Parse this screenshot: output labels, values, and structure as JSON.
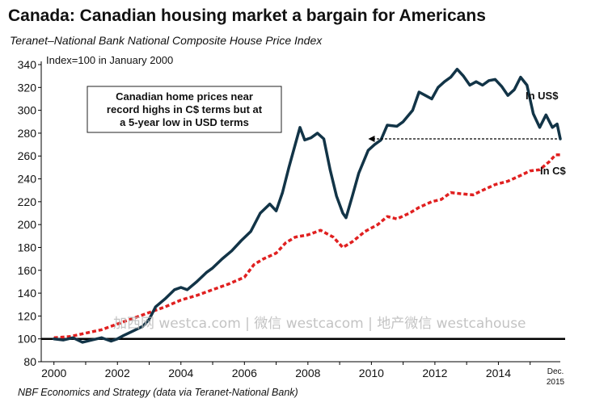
{
  "title": "Canada: Canadian housing market a bargain for Americans",
  "subtitle": "Teranet–National Bank National Composite House Price Index",
  "source": "NBF Economics and Strategy (data via Teranet-National Bank)",
  "watermark": "加西网 westca.com | 微信 westcacom | 地产微信 westcahouse",
  "colors": {
    "usd": "#123447",
    "cad": "#e02020",
    "baseline": "#000000"
  },
  "chart_data": {
    "type": "line",
    "ylabel": "Index=100 in January 2000",
    "ylim": [
      80,
      340
    ],
    "yticks": [
      80,
      100,
      120,
      140,
      160,
      180,
      200,
      220,
      240,
      260,
      280,
      300,
      320,
      340
    ],
    "xlim": [
      1999.6,
      2015.95
    ],
    "xticks": [
      2000,
      2002,
      2004,
      2006,
      2008,
      2010,
      2012,
      2014
    ],
    "xtick_labels": [
      "2000",
      "2002",
      "2004",
      "2006",
      "2008",
      "2010",
      "2012",
      "2014"
    ],
    "x_end_label": [
      "Dec.",
      "2015"
    ],
    "baseline": 100,
    "grid": false,
    "annotation": [
      "Canadian home prices near",
      "record highs in C$ terms but at",
      "a 5-year low in USD terms"
    ],
    "reference_arrow": {
      "from_x": 2015.95,
      "to_x": 2009.9,
      "y": 275
    },
    "series": [
      {
        "name": "In US$",
        "style": "solid",
        "points": [
          [
            2000.0,
            100
          ],
          [
            2000.3,
            99
          ],
          [
            2000.6,
            101
          ],
          [
            2000.9,
            97
          ],
          [
            2001.2,
            99
          ],
          [
            2001.5,
            101
          ],
          [
            2001.8,
            98
          ],
          [
            2002.0,
            100
          ],
          [
            2002.2,
            103
          ],
          [
            2002.5,
            107
          ],
          [
            2002.8,
            111
          ],
          [
            2003.0,
            117
          ],
          [
            2003.2,
            128
          ],
          [
            2003.5,
            135
          ],
          [
            2003.8,
            143
          ],
          [
            2004.0,
            145
          ],
          [
            2004.2,
            143
          ],
          [
            2004.5,
            150
          ],
          [
            2004.8,
            158
          ],
          [
            2005.0,
            162
          ],
          [
            2005.3,
            170
          ],
          [
            2005.6,
            177
          ],
          [
            2005.9,
            186
          ],
          [
            2006.2,
            194
          ],
          [
            2006.5,
            210
          ],
          [
            2006.8,
            218
          ],
          [
            2007.0,
            212
          ],
          [
            2007.2,
            228
          ],
          [
            2007.4,
            250
          ],
          [
            2007.6,
            270
          ],
          [
            2007.75,
            285
          ],
          [
            2007.9,
            274
          ],
          [
            2008.1,
            276
          ],
          [
            2008.3,
            280
          ],
          [
            2008.5,
            275
          ],
          [
            2008.7,
            248
          ],
          [
            2008.9,
            225
          ],
          [
            2009.1,
            210
          ],
          [
            2009.2,
            206
          ],
          [
            2009.4,
            225
          ],
          [
            2009.6,
            245
          ],
          [
            2009.9,
            265
          ],
          [
            2010.1,
            270
          ],
          [
            2010.3,
            274
          ],
          [
            2010.5,
            287
          ],
          [
            2010.8,
            286
          ],
          [
            2011.0,
            290
          ],
          [
            2011.3,
            300
          ],
          [
            2011.5,
            316
          ],
          [
            2011.7,
            313
          ],
          [
            2011.9,
            310
          ],
          [
            2012.1,
            320
          ],
          [
            2012.3,
            325
          ],
          [
            2012.5,
            329
          ],
          [
            2012.7,
            336
          ],
          [
            2012.9,
            330
          ],
          [
            2013.1,
            322
          ],
          [
            2013.3,
            325
          ],
          [
            2013.5,
            322
          ],
          [
            2013.7,
            326
          ],
          [
            2013.9,
            327
          ],
          [
            2014.1,
            321
          ],
          [
            2014.3,
            313
          ],
          [
            2014.5,
            318
          ],
          [
            2014.7,
            329
          ],
          [
            2014.9,
            322
          ],
          [
            2015.1,
            297
          ],
          [
            2015.3,
            285
          ],
          [
            2015.5,
            296
          ],
          [
            2015.7,
            285
          ],
          [
            2015.85,
            288
          ],
          [
            2015.95,
            275
          ]
        ]
      },
      {
        "name": "In C$",
        "style": "dashed",
        "points": [
          [
            2000.0,
            101
          ],
          [
            2000.5,
            102
          ],
          [
            2001.0,
            105
          ],
          [
            2001.5,
            108
          ],
          [
            2002.0,
            113
          ],
          [
            2002.5,
            118
          ],
          [
            2003.0,
            123
          ],
          [
            2003.5,
            128
          ],
          [
            2004.0,
            134
          ],
          [
            2004.5,
            138
          ],
          [
            2005.0,
            143
          ],
          [
            2005.5,
            148
          ],
          [
            2006.0,
            154
          ],
          [
            2006.3,
            165
          ],
          [
            2006.6,
            170
          ],
          [
            2007.0,
            175
          ],
          [
            2007.3,
            184
          ],
          [
            2007.6,
            189
          ],
          [
            2008.0,
            191
          ],
          [
            2008.4,
            195
          ],
          [
            2008.8,
            189
          ],
          [
            2009.1,
            180
          ],
          [
            2009.4,
            185
          ],
          [
            2009.8,
            194
          ],
          [
            2010.2,
            200
          ],
          [
            2010.5,
            207
          ],
          [
            2010.8,
            205
          ],
          [
            2011.2,
            210
          ],
          [
            2011.5,
            215
          ],
          [
            2011.9,
            220
          ],
          [
            2012.2,
            222
          ],
          [
            2012.5,
            228
          ],
          [
            2012.8,
            227
          ],
          [
            2013.2,
            226
          ],
          [
            2013.5,
            230
          ],
          [
            2013.9,
            235
          ],
          [
            2014.3,
            238
          ],
          [
            2014.7,
            243
          ],
          [
            2015.0,
            247
          ],
          [
            2015.3,
            248
          ],
          [
            2015.6,
            255
          ],
          [
            2015.8,
            261
          ],
          [
            2015.95,
            261
          ]
        ]
      }
    ]
  }
}
